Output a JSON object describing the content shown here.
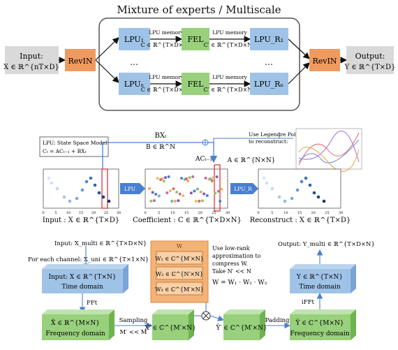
{
  "moe": {
    "title": "Mixture of experts / Multiscale",
    "input_label": "Input:",
    "input_shape": "X ∈ ℝ^{nT×D}",
    "revin": "RevIN",
    "revin_out": "RevIN",
    "output_label": "Output:",
    "output_shape": "Y ∈ ℝ^{T×D}",
    "rows": [
      {
        "lpu": "LPU₁",
        "mem1_title": "LPU memory",
        "mem1_shape": "C ∈ ℝ^{T×D×N}",
        "fel": "FEL",
        "mem2_title": "LPU memory",
        "mem2_shape": "C′ ∈ ℝ^{T×D×N}",
        "lpur": "LPU_R₁"
      },
      {
        "lpu": "LPUₙ",
        "mem1_title": "LPU memory",
        "mem1_shape": "C ∈ ℝ^{T×D×N}",
        "fel": "FEL",
        "mem2_title": "LPU memory",
        "mem2_shape": "C′ ∈ ℝ^{T×D×N}",
        "lpur": "LPU_Rₙ"
      }
    ],
    "ellipsis": "…"
  },
  "ssm": {
    "box_line1": "LPU: State Space Model",
    "box_line2": "Cₜ = ACₜ₋₁ + BXₜ",
    "bx": "BXₜ",
    "b_shape": "B ∈ ℝ^N",
    "legendre_note": "Use Legendre Polynomials to reconstruct:",
    "ac": "ACₜ₋₁",
    "a_shape": "A ∈ ℝ^{N×N}",
    "lpu_arrow": "LPU",
    "lpur_arrow": "LPU_R",
    "caption_input": "Input : X ∈ ℝ^{T×D}",
    "caption_coef": "Coefficient : C ∈ ℝ^{T×D×N}",
    "caption_recon": "Reconstruct : X ∈ ℝ^{T×D}",
    "x_ticks": [
      "0",
      "5",
      "10",
      "15",
      "20",
      "25",
      "30"
    ]
  },
  "fel": {
    "input_multi": "Input: X_multi ∈ ℝ^{T×D×N}",
    "each_channel": "For each channel: X_uni ∈ ℝ^{T×1×N}",
    "box_input_line1": "Input: X ∈ ℝ^{T×N}",
    "box_input_line2": "Time domain",
    "fft": "FFt",
    "box_freq_line1": "X̂ ∈ ℝ^{M×N}",
    "box_freq_line2": "Frequency domain",
    "sampling": "Sampling",
    "m_prime": "M′ << M",
    "box_xprime": "X̂′ ∈ ℂ^{M′×N}",
    "w_label": "W",
    "w1": "W₁ ∈ ℂ^{M′×N}",
    "w2": "W₂ ∈ ℂ^{N′×N}",
    "w3": "W₃ ∈ ℂ^{M′×N}",
    "lowrank_note": "Use low-rank approximation to compress W. Take N′ << N",
    "w_eq": "W = W₁ · W₂ · W₃",
    "box_yprime": "Ŷ′ ∈ ℂ^{M′×N}",
    "padding": "Padding",
    "box_yhat_line1": "Ŷ ∈ ℂ^{M×N}",
    "box_yhat_line2": "Frequency domain",
    "ifft": "iFFt",
    "box_y_line1": "Y ∈ ℝ^{T×N}",
    "box_y_line2": "Time domain",
    "output_multi": "Output: Y_multi ∈ ℝ^{T×D×N}"
  },
  "colors": {
    "lpu_blue": "#9fc3e7",
    "fel_green": "#98d07c",
    "revin_orange": "#ef9a5f",
    "gray_box": "#d9d9d9",
    "link_blue": "#4a7fd0",
    "red_highlight": "#d9363e",
    "w_orange": "#f3b277"
  }
}
